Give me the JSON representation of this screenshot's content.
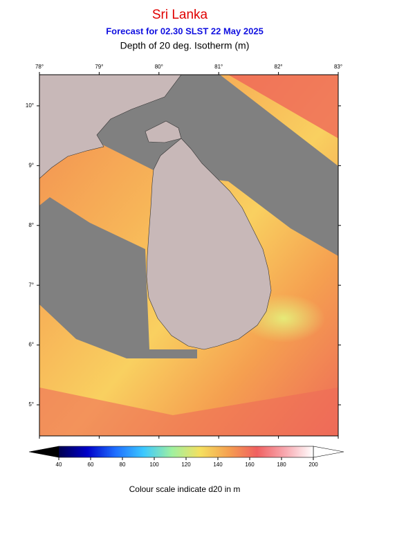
{
  "header": {
    "title": "Sri Lanka",
    "subtitle": "Forecast for  02.30 SLST 22 May 2025",
    "description": "Depth of 20 deg. Isotherm (m)"
  },
  "map": {
    "xlim": [
      78,
      83
    ],
    "ylim": [
      4.48,
      10.52
    ],
    "xticks": [
      {
        "value": 78,
        "label": "78°"
      },
      {
        "value": 79,
        "label": "79°"
      },
      {
        "value": 80,
        "label": "80°"
      },
      {
        "value": 81,
        "label": "81°"
      },
      {
        "value": 82,
        "label": "82°"
      },
      {
        "value": 83,
        "label": "83°"
      }
    ],
    "yticks": [
      {
        "value": 5,
        "label": "5°"
      },
      {
        "value": 6,
        "label": "6°"
      },
      {
        "value": 7,
        "label": "7°"
      },
      {
        "value": 8,
        "label": "8°"
      },
      {
        "value": 9,
        "label": "9°"
      },
      {
        "value": 10,
        "label": "10°"
      }
    ]
  },
  "colorbar": {
    "range": [
      40,
      200
    ],
    "ticks": [
      40,
      60,
      80,
      100,
      120,
      140,
      160,
      180,
      200
    ],
    "colors": [
      "#000050",
      "#0000c8",
      "#1e6eff",
      "#3cc8ff",
      "#9ff0a0",
      "#f5e060",
      "#f5a050",
      "#f06060",
      "#f8a8b0",
      "#ffffff"
    ]
  },
  "caption": "Colour scale indicate d20 in m"
}
